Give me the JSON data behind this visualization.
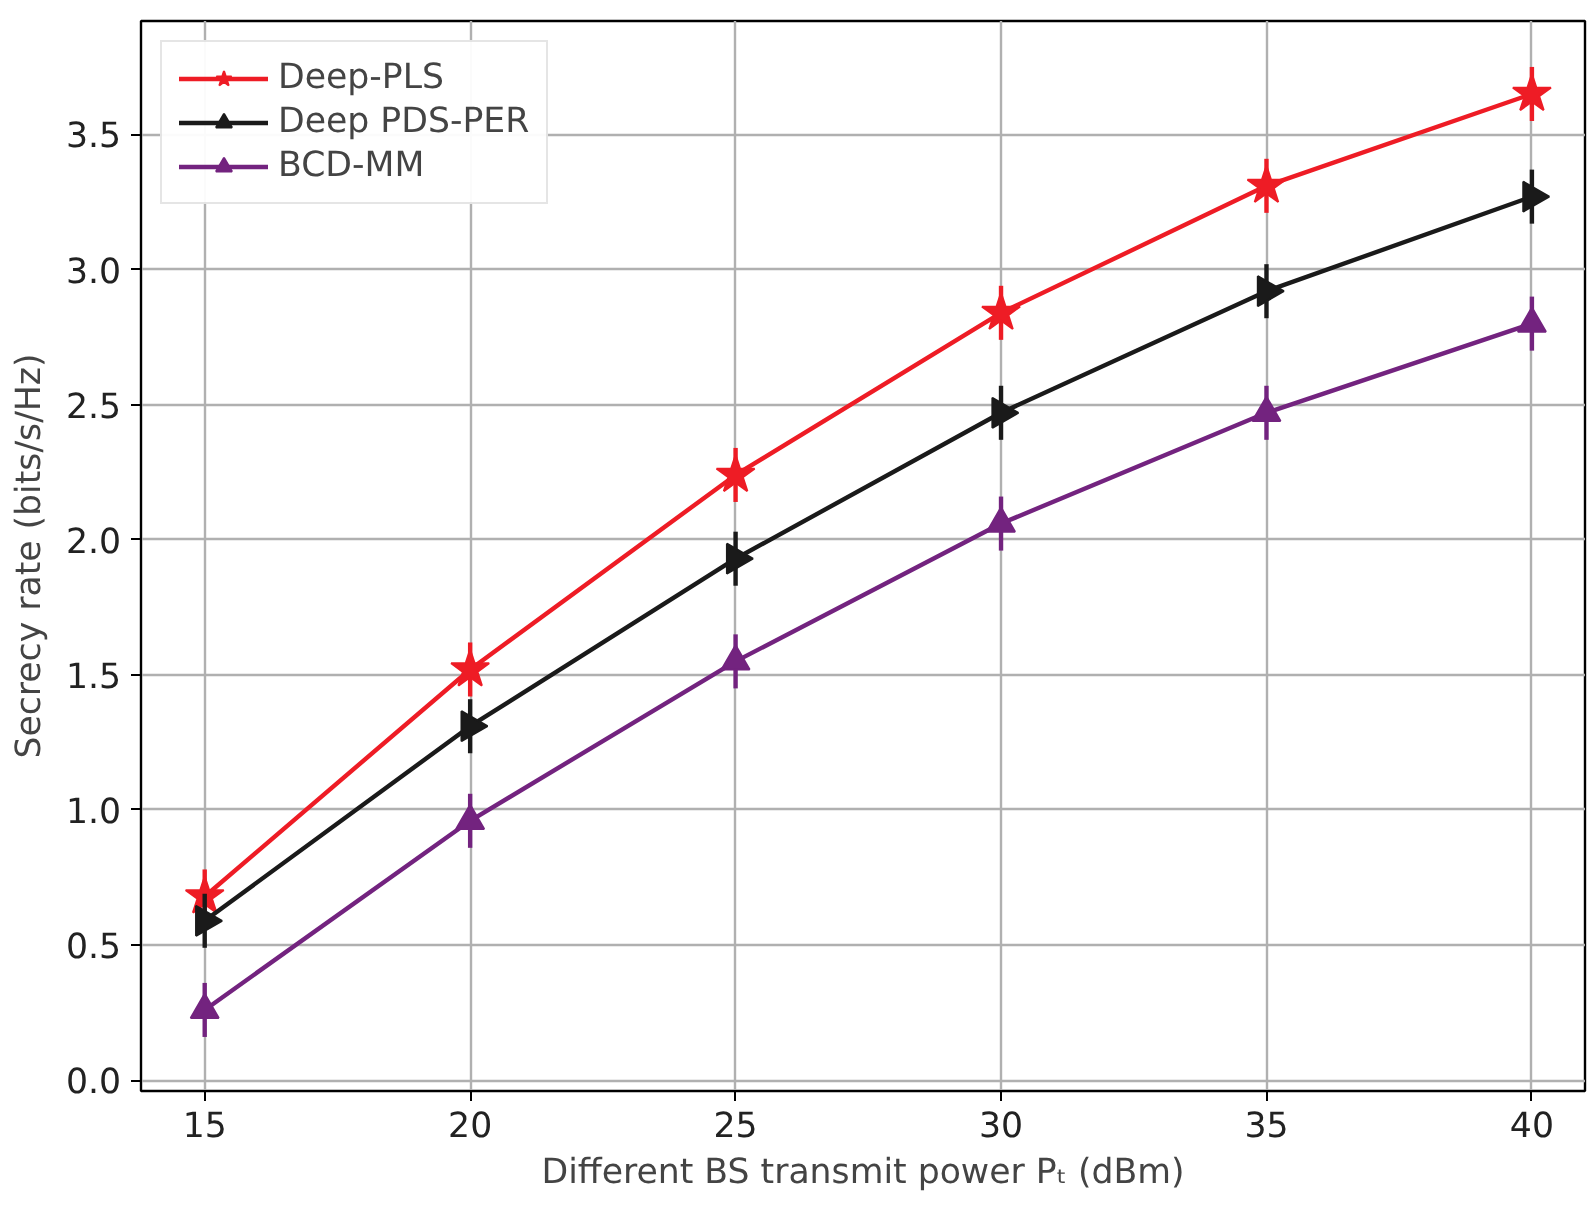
{
  "chart_data": {
    "type": "line",
    "xlabel": "Different BS transmit power Pₜ (dBm)",
    "ylabel": "Secrecy rate (bits/s/Hz)",
    "x": [
      15,
      20,
      25,
      30,
      35,
      40
    ],
    "series": [
      {
        "name": "Deep-PLS",
        "color": "#ee1c25",
        "marker": "star",
        "values": [
          0.68,
          1.52,
          2.24,
          2.84,
          3.31,
          3.65
        ],
        "errors": [
          0.1,
          0.1,
          0.1,
          0.1,
          0.1,
          0.1
        ]
      },
      {
        "name": "Deep PDS-PER",
        "color": "#1a1a1a",
        "marker": "triangle_right",
        "values": [
          0.59,
          1.31,
          1.93,
          2.47,
          2.92,
          3.27
        ],
        "errors": [
          0.1,
          0.1,
          0.1,
          0.1,
          0.1,
          0.1
        ]
      },
      {
        "name": "BCD-MM",
        "color": "#73237f",
        "marker": "triangle",
        "values": [
          0.26,
          0.96,
          1.55,
          2.06,
          2.47,
          2.8
        ],
        "errors": [
          0.1,
          0.1,
          0.1,
          0.1,
          0.1,
          0.1
        ]
      }
    ],
    "xlim": [
      13.8,
      41.0
    ],
    "ylim": [
      -0.04,
      3.92
    ],
    "xticks": [
      15,
      20,
      25,
      30,
      35,
      40
    ],
    "yticks": [
      {
        "value": 0,
        "label": "0.0"
      },
      {
        "value": 0.5,
        "label": "0.5"
      },
      {
        "value": 1,
        "label": "1.0"
      },
      {
        "value": 1.5,
        "label": "1.5"
      },
      {
        "value": 2,
        "label": "2.0"
      },
      {
        "value": 2.5,
        "label": "2.5"
      },
      {
        "value": 3,
        "label": "3.0"
      },
      {
        "value": 3.5,
        "label": "3.5"
      }
    ],
    "grid": true,
    "legend": "top left",
    "line_style": "solid"
  }
}
